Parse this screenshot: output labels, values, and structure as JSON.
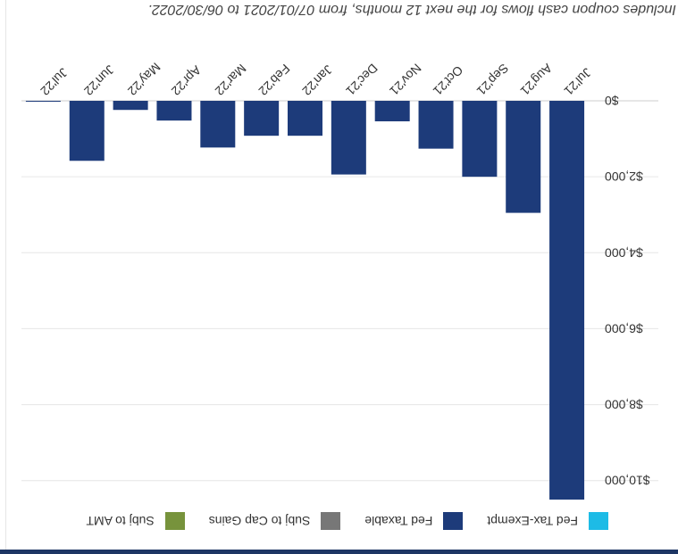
{
  "legend": [
    {
      "label": "Fed Tax-Exempt",
      "color": "#1dbbe6"
    },
    {
      "label": "Fed Taxable",
      "color": "#1d3b7a"
    },
    {
      "label": "Subj to Cap Gains",
      "color": "#777777"
    },
    {
      "label": "Subj to AMT",
      "color": "#77933c"
    }
  ],
  "note": "Includes coupon cash flows for the next 12 months, from 07/01/2021 to 06/30/2022.",
  "chart_data": {
    "type": "bar",
    "categories": [
      "Jul'21",
      "Aug'21",
      "Sep'21",
      "Oct'21",
      "Nov'21",
      "Dec'21",
      "Jan'22",
      "Feb'22",
      "Mar'22",
      "Apr'22",
      "May'22",
      "Jun'22",
      "Jul'22"
    ],
    "series": [
      {
        "name": "Fed Taxable",
        "color": "#1d3b7a",
        "values": [
          10500,
          2950,
          2000,
          1260,
          540,
          1940,
          920,
          920,
          1230,
          520,
          240,
          1580,
          20
        ]
      }
    ],
    "ylim": [
      0,
      10500
    ],
    "yticks": [
      0,
      2000,
      4000,
      6000,
      8000,
      10000
    ],
    "ytick_labels": [
      "$0",
      "$2,000",
      "$4,000",
      "$6,000",
      "$8,000",
      "$10,000"
    ],
    "grid": true,
    "legend_position": "top"
  }
}
